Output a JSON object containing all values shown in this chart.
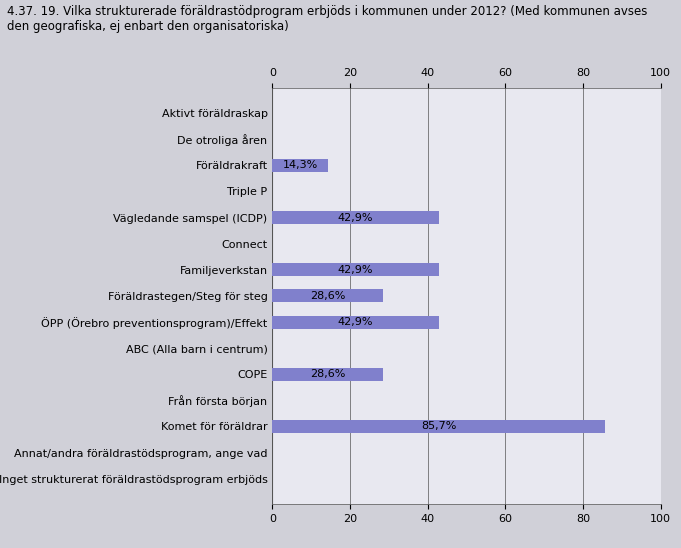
{
  "title": "4.37. 19. Vilka strukturerade föräldrastödprogram erbjöds i kommunen under 2012? (Med kommunen avses\nden geografiska, ej enbart den organisatoriska)",
  "categories": [
    "Inget strukturerat föräldrastödsprogram erbjöds",
    "Annat/andra föräldrastödsprogram, ange vad",
    "Komet för föräldrar",
    "Från första början",
    "COPE",
    "ABC (Alla barn i centrum)",
    "ÖPP (Örebro preventionsprogram)/Effekt",
    "Föräldrastegen/Steg för steg",
    "Familjeverkstan",
    "Connect",
    "Vägledande samspel (ICDP)",
    "Triple P",
    "Föräldrakraft",
    "De otroliga åren",
    "Aktivt föräldraskap"
  ],
  "values": [
    0,
    0,
    85.7,
    0,
    28.6,
    0,
    42.9,
    28.6,
    42.9,
    0,
    42.9,
    0,
    14.3,
    0,
    0
  ],
  "labels": [
    "",
    "",
    "85,7%",
    "",
    "28,6%",
    "",
    "42,9%",
    "28,6%",
    "42,9%",
    "",
    "42,9%",
    "",
    "14,3%",
    "",
    ""
  ],
  "bar_color": "#8080cc",
  "fig_bg_color": "#d0d0d8",
  "plot_bg_color": "#e8e8f0",
  "xlim": [
    0,
    100
  ],
  "xticks": [
    0,
    20,
    40,
    60,
    80,
    100
  ],
  "title_fontsize": 8.5,
  "tick_fontsize": 8,
  "label_fontsize": 8
}
